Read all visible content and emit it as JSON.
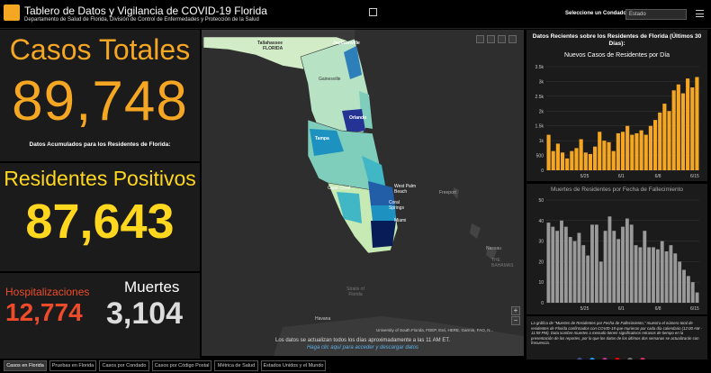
{
  "header": {
    "title": "Tablero de Datos y Vigilancia de COVID-19 Florida",
    "subtitle": "Departamento de Salud de Florida, División de Control de Enfermedades y Protección de la Salud",
    "county_label": "Seleccione un Condado",
    "county_value": "Estado"
  },
  "stats": {
    "total_label": "Casos Totales",
    "total_value": "89,748",
    "cumulative_label": "Datos Acumulados para los Residentes de Florida:",
    "positive_label": "Residentes Positivos",
    "positive_value": "87,643",
    "hosp_label": "Hospitalizaciones",
    "hosp_value": "12,774",
    "deaths_label": "Muertes",
    "deaths_value": "3,104"
  },
  "colors": {
    "orange": "#f5a623",
    "yellow": "#ffd71f",
    "red": "#ee4b2b",
    "bar_gray": "#9a9a9a"
  },
  "map": {
    "cities": [
      "Jacksonville",
      "Orlando",
      "Tampa",
      "West Palm Beach",
      "Coral Springs",
      "Miami",
      "Cape Coral",
      "Gainesville",
      "Tallahassee",
      "Freeport",
      "Nassau",
      "Havana"
    ],
    "labels": {
      "florida": "FLORIDA",
      "bahamas": "THE BAHAMAS",
      "straits": "Straits of Florida"
    },
    "attribution": "University of South Florida, FDEP, Esri, HERE, Garmin, FAO, N...",
    "update_note": "Los datos se actualizan todos los días aproximadamente a las 11 AM ET.",
    "download_link": "Haga clic aquí para acceder y descargar datos"
  },
  "recent": {
    "title": "Datos Recientes sobre los Residentes de Florida (Últimos 30 Días):",
    "new_cases_title": "Nuevos Casos de Residentes por Día",
    "deaths_title": "Muertes de Residentes por Fecha de Fallecimiento",
    "note": "La gráfica de \"Muertes de Residentes por Fecha de Fallecimiento,\" muestra el número total de residentes de Florida confirmados con COVID-19 que murieron por cada día calendario (12:00 AM - 11:59 PM). Data sombre muertes a menudo tienen significativos retrasos de tiempo en la presentación de los reportes, por lo que los datos de los últimos dos semanas se actualizarán con frecuencia."
  },
  "chart_data": [
    {
      "type": "bar",
      "title": "Nuevos Casos de Residentes por Día",
      "yticks": [
        "0",
        "500",
        "1k",
        "1.5k",
        "2k",
        "2.5k",
        "3k",
        "3.5k"
      ],
      "xticks": [
        "5/25",
        "6/1",
        "6/8",
        "6/15"
      ],
      "ylim": [
        0,
        3500
      ],
      "values": [
        1200,
        650,
        900,
        600,
        400,
        650,
        750,
        1050,
        600,
        550,
        800,
        1300,
        1000,
        950,
        650,
        1250,
        1300,
        1500,
        1200,
        1250,
        1350,
        1200,
        1500,
        1700,
        1950,
        2250,
        2000,
        2700,
        2900,
        2600,
        3100,
        2800,
        3150
      ]
    },
    {
      "type": "bar",
      "title": "Muertes de Residentes por Fecha de Fallecimiento",
      "yticks": [
        "0",
        "10",
        "20",
        "30",
        "40",
        "50"
      ],
      "xticks": [
        "5/25",
        "6/1",
        "6/8",
        "6/15"
      ],
      "ylim": [
        0,
        50
      ],
      "values": [
        39,
        37,
        35,
        40,
        37,
        32,
        30,
        34,
        28,
        23,
        38,
        38,
        20,
        35,
        42,
        35,
        31,
        37,
        41,
        38,
        28,
        27,
        35,
        27,
        27,
        26,
        30,
        25,
        28,
        24,
        20,
        16,
        13,
        10,
        5
      ]
    }
  ],
  "tabs": [
    "Casos en Florida",
    "Pruebas en Florida",
    "Casos por Condado",
    "Casos por Código Postal",
    "Métrica de Salud",
    "Estados Unidos y el Mundo"
  ]
}
